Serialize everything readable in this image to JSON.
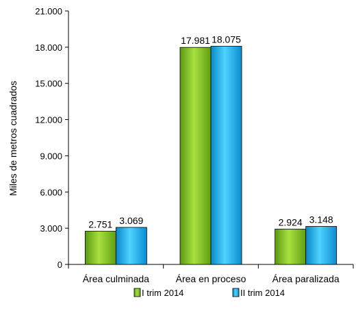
{
  "chart_data": {
    "type": "bar",
    "categories": [
      "Área culminada",
      "Área en proceso",
      "Área paralizada"
    ],
    "series": [
      {
        "name": "I trim 2014",
        "values": [
          2751,
          17981,
          2924
        ],
        "labels": [
          "2.751",
          "17.981",
          "2.924"
        ],
        "color": "#7dc11f"
      },
      {
        "name": "II trim 2014",
        "values": [
          3069,
          18075,
          3148
        ],
        "labels": [
          "3.069",
          "18.075",
          "3.148"
        ],
        "color": "#1fb0ec"
      }
    ],
    "ylabel": "Miles de metros cuadrados",
    "ylim": [
      0,
      21000
    ],
    "yticks": [
      0,
      3000,
      6000,
      9000,
      12000,
      15000,
      18000,
      21000
    ],
    "ytick_labels": [
      "0",
      "3.000",
      "6.000",
      "9.000",
      "12.000",
      "15.000",
      "18.000",
      "21.000"
    ],
    "grid": false,
    "legend_position": "bottom"
  }
}
